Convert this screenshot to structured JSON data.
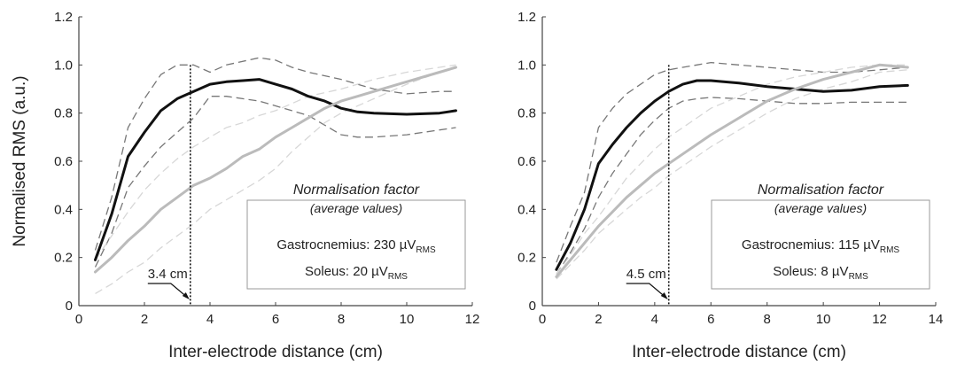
{
  "chart_data": [
    {
      "type": "line",
      "xlabel": "Inter-electrode distance (cm)",
      "ylabel": "Normalised RMS (a.u.)",
      "xlim": [
        0,
        12
      ],
      "ylim": [
        0,
        1.2
      ],
      "x_ticks": [
        "0",
        "2",
        "4",
        "6",
        "8",
        "10",
        "12"
      ],
      "y_ticks": [
        "0",
        "0.2",
        "0.4",
        "0.6",
        "0.8",
        "1.0",
        "1.2"
      ],
      "grid": false,
      "marker": {
        "x": 3.4,
        "label": "3.4 cm"
      },
      "annotation": {
        "title": "Normalisation factor",
        "subtitle": "(average values)",
        "lines": [
          {
            "text": "Gastrocnemius: 230 µV",
            "sub": "RMS"
          },
          {
            "text": "Soleus: 20 µV",
            "sub": "RMS"
          }
        ]
      },
      "series": [
        {
          "color": "#111111",
          "style": "solid",
          "width": 3,
          "points": [
            [
              0.5,
              0.19
            ],
            [
              1,
              0.38
            ],
            [
              1.5,
              0.62
            ],
            [
              2,
              0.72
            ],
            [
              2.5,
              0.81
            ],
            [
              3,
              0.86
            ],
            [
              3.5,
              0.89
            ],
            [
              4,
              0.92
            ],
            [
              4.5,
              0.93
            ],
            [
              5,
              0.935
            ],
            [
              5.5,
              0.94
            ],
            [
              6,
              0.92
            ],
            [
              6.5,
              0.9
            ],
            [
              7,
              0.87
            ],
            [
              7.5,
              0.85
            ],
            [
              8,
              0.82
            ],
            [
              8.5,
              0.805
            ],
            [
              9,
              0.8
            ],
            [
              10,
              0.795
            ],
            [
              11,
              0.8
            ],
            [
              11.5,
              0.81
            ]
          ]
        },
        {
          "color": "#777777",
          "style": "dashed",
          "width": 1.3,
          "points": [
            [
              0.5,
              0.23
            ],
            [
              1,
              0.45
            ],
            [
              1.5,
              0.74
            ],
            [
              2,
              0.86
            ],
            [
              2.5,
              0.96
            ],
            [
              3,
              1.0
            ],
            [
              3.5,
              1.0
            ],
            [
              4,
              0.97
            ],
            [
              4.5,
              1.0
            ],
            [
              5.5,
              1.03
            ],
            [
              6,
              1.02
            ],
            [
              6.5,
              0.99
            ],
            [
              7,
              0.97
            ],
            [
              8,
              0.94
            ],
            [
              9,
              0.9
            ],
            [
              10,
              0.88
            ],
            [
              11,
              0.89
            ],
            [
              11.5,
              0.89
            ]
          ]
        },
        {
          "color": "#777777",
          "style": "dashed",
          "width": 1.3,
          "points": [
            [
              0.5,
              0.16
            ],
            [
              1,
              0.3
            ],
            [
              1.5,
              0.49
            ],
            [
              2,
              0.58
            ],
            [
              2.5,
              0.66
            ],
            [
              3,
              0.72
            ],
            [
              3.5,
              0.78
            ],
            [
              4,
              0.87
            ],
            [
              4.5,
              0.87
            ],
            [
              5.5,
              0.85
            ],
            [
              6,
              0.83
            ],
            [
              7,
              0.79
            ],
            [
              7.5,
              0.75
            ],
            [
              8,
              0.71
            ],
            [
              8.5,
              0.7
            ],
            [
              9,
              0.7
            ],
            [
              10,
              0.71
            ],
            [
              11,
              0.73
            ],
            [
              11.5,
              0.74
            ]
          ]
        },
        {
          "color": "#bbbbbb",
          "style": "solid",
          "width": 3,
          "points": [
            [
              0.5,
              0.14
            ],
            [
              1,
              0.2
            ],
            [
              1.5,
              0.27
            ],
            [
              2,
              0.33
            ],
            [
              2.5,
              0.4
            ],
            [
              3,
              0.45
            ],
            [
              3.5,
              0.5
            ],
            [
              4,
              0.53
            ],
            [
              4.5,
              0.57
            ],
            [
              5,
              0.62
            ],
            [
              5.5,
              0.65
            ],
            [
              6,
              0.7
            ],
            [
              6.5,
              0.74
            ],
            [
              7,
              0.78
            ],
            [
              7.5,
              0.82
            ],
            [
              8,
              0.85
            ],
            [
              8.5,
              0.87
            ],
            [
              9,
              0.89
            ],
            [
              10,
              0.93
            ],
            [
              11,
              0.97
            ],
            [
              11.5,
              0.99
            ]
          ]
        },
        {
          "color": "#d7d7d7",
          "style": "dashed",
          "width": 1.3,
          "points": [
            [
              0.5,
              0.19
            ],
            [
              1,
              0.29
            ],
            [
              1.5,
              0.39
            ],
            [
              2,
              0.48
            ],
            [
              2.5,
              0.55
            ],
            [
              3,
              0.61
            ],
            [
              3.5,
              0.66
            ],
            [
              4,
              0.7
            ],
            [
              4.5,
              0.74
            ],
            [
              5,
              0.76
            ],
            [
              5.5,
              0.79
            ],
            [
              6,
              0.81
            ],
            [
              6.5,
              0.84
            ],
            [
              7,
              0.87
            ],
            [
              8,
              0.9
            ],
            [
              9,
              0.94
            ],
            [
              10,
              0.97
            ],
            [
              11,
              0.99
            ],
            [
              11.5,
              1.0
            ]
          ]
        },
        {
          "color": "#d7d7d7",
          "style": "dashed",
          "width": 1.3,
          "points": [
            [
              0.5,
              0.05
            ],
            [
              1,
              0.09
            ],
            [
              1.5,
              0.14
            ],
            [
              2,
              0.18
            ],
            [
              2.5,
              0.24
            ],
            [
              3,
              0.29
            ],
            [
              3.5,
              0.34
            ],
            [
              4,
              0.4
            ],
            [
              4.5,
              0.44
            ],
            [
              5,
              0.48
            ],
            [
              5.5,
              0.52
            ],
            [
              6,
              0.57
            ],
            [
              6.5,
              0.64
            ],
            [
              7,
              0.7
            ],
            [
              7.5,
              0.76
            ],
            [
              8,
              0.8
            ],
            [
              9,
              0.86
            ],
            [
              10,
              0.92
            ],
            [
              11,
              0.97
            ],
            [
              11.5,
              0.99
            ]
          ]
        }
      ]
    },
    {
      "type": "line",
      "xlabel": "Inter-electrode distance (cm)",
      "ylabel": "",
      "xlim": [
        0,
        14
      ],
      "ylim": [
        0,
        1.2
      ],
      "x_ticks": [
        "0",
        "2",
        "4",
        "6",
        "8",
        "10",
        "12",
        "14"
      ],
      "y_ticks": [
        "0",
        "0.2",
        "0.4",
        "0.6",
        "0.8",
        "1.0",
        "1.2"
      ],
      "grid": false,
      "marker": {
        "x": 4.5,
        "label": "4.5 cm"
      },
      "annotation": {
        "title": "Normalisation factor",
        "subtitle": "(average values)",
        "lines": [
          {
            "text": "Gastrocnemius: 115 µV",
            "sub": "RMS"
          },
          {
            "text": "Soleus: 8 µV",
            "sub": "RMS"
          }
        ]
      },
      "series": [
        {
          "color": "#111111",
          "style": "solid",
          "width": 3,
          "points": [
            [
              0.5,
              0.15
            ],
            [
              1,
              0.26
            ],
            [
              1.5,
              0.4
            ],
            [
              2,
              0.59
            ],
            [
              2.5,
              0.67
            ],
            [
              3,
              0.74
            ],
            [
              3.5,
              0.8
            ],
            [
              4,
              0.85
            ],
            [
              4.5,
              0.89
            ],
            [
              5,
              0.92
            ],
            [
              5.5,
              0.935
            ],
            [
              6,
              0.935
            ],
            [
              7,
              0.925
            ],
            [
              8,
              0.91
            ],
            [
              9,
              0.9
            ],
            [
              10,
              0.89
            ],
            [
              11,
              0.895
            ],
            [
              12,
              0.91
            ],
            [
              13,
              0.915
            ]
          ]
        },
        {
          "color": "#777777",
          "style": "dashed",
          "width": 1.3,
          "points": [
            [
              0.5,
              0.18
            ],
            [
              1,
              0.33
            ],
            [
              1.5,
              0.47
            ],
            [
              2,
              0.74
            ],
            [
              2.5,
              0.82
            ],
            [
              3,
              0.88
            ],
            [
              3.5,
              0.92
            ],
            [
              4,
              0.96
            ],
            [
              4.5,
              0.98
            ],
            [
              5,
              0.99
            ],
            [
              5.5,
              1.0
            ],
            [
              6,
              1.01
            ],
            [
              7,
              1.0
            ],
            [
              8,
              0.99
            ],
            [
              9,
              0.98
            ],
            [
              10,
              0.97
            ],
            [
              11,
              0.97
            ],
            [
              12,
              0.98
            ],
            [
              13,
              0.99
            ]
          ]
        },
        {
          "color": "#777777",
          "style": "dashed",
          "width": 1.3,
          "points": [
            [
              0.5,
              0.13
            ],
            [
              1,
              0.22
            ],
            [
              1.5,
              0.32
            ],
            [
              2,
              0.45
            ],
            [
              2.5,
              0.55
            ],
            [
              3,
              0.63
            ],
            [
              3.5,
              0.71
            ],
            [
              4,
              0.77
            ],
            [
              4.5,
              0.82
            ],
            [
              5,
              0.85
            ],
            [
              5.5,
              0.86
            ],
            [
              6,
              0.865
            ],
            [
              7,
              0.86
            ],
            [
              8,
              0.85
            ],
            [
              9,
              0.84
            ],
            [
              10,
              0.84
            ],
            [
              11,
              0.845
            ],
            [
              12,
              0.845
            ],
            [
              13,
              0.845
            ]
          ]
        },
        {
          "color": "#bbbbbb",
          "style": "solid",
          "width": 3,
          "points": [
            [
              0.5,
              0.12
            ],
            [
              1,
              0.19
            ],
            [
              1.5,
              0.26
            ],
            [
              2,
              0.33
            ],
            [
              2.5,
              0.39
            ],
            [
              3,
              0.45
            ],
            [
              3.5,
              0.5
            ],
            [
              4,
              0.55
            ],
            [
              4.5,
              0.59
            ],
            [
              5,
              0.63
            ],
            [
              5.5,
              0.67
            ],
            [
              6,
              0.71
            ],
            [
              7,
              0.78
            ],
            [
              8,
              0.85
            ],
            [
              9,
              0.9
            ],
            [
              10,
              0.94
            ],
            [
              11,
              0.97
            ],
            [
              12,
              1.0
            ],
            [
              13,
              0.99
            ]
          ]
        },
        {
          "color": "#d7d7d7",
          "style": "dashed",
          "width": 1.3,
          "points": [
            [
              0.5,
              0.13
            ],
            [
              1,
              0.21
            ],
            [
              1.5,
              0.3
            ],
            [
              2,
              0.37
            ],
            [
              2.5,
              0.45
            ],
            [
              3,
              0.53
            ],
            [
              3.5,
              0.59
            ],
            [
              4,
              0.65
            ],
            [
              4.5,
              0.7
            ],
            [
              5,
              0.74
            ],
            [
              5.5,
              0.78
            ],
            [
              6,
              0.82
            ],
            [
              7,
              0.87
            ],
            [
              8,
              0.92
            ],
            [
              9,
              0.95
            ],
            [
              10,
              0.97
            ],
            [
              11,
              0.99
            ],
            [
              12,
              1.0
            ],
            [
              13,
              1.0
            ]
          ]
        },
        {
          "color": "#d7d7d7",
          "style": "dashed",
          "width": 1.3,
          "points": [
            [
              0.5,
              0.11
            ],
            [
              1,
              0.17
            ],
            [
              1.5,
              0.23
            ],
            [
              2,
              0.3
            ],
            [
              2.5,
              0.35
            ],
            [
              3,
              0.4
            ],
            [
              3.5,
              0.45
            ],
            [
              4,
              0.49
            ],
            [
              4.5,
              0.54
            ],
            [
              5,
              0.58
            ],
            [
              5.5,
              0.62
            ],
            [
              6,
              0.66
            ],
            [
              7,
              0.73
            ],
            [
              8,
              0.8
            ],
            [
              9,
              0.86
            ],
            [
              10,
              0.9
            ],
            [
              11,
              0.93
            ],
            [
              12,
              0.97
            ],
            [
              13,
              0.98
            ]
          ]
        }
      ]
    }
  ]
}
